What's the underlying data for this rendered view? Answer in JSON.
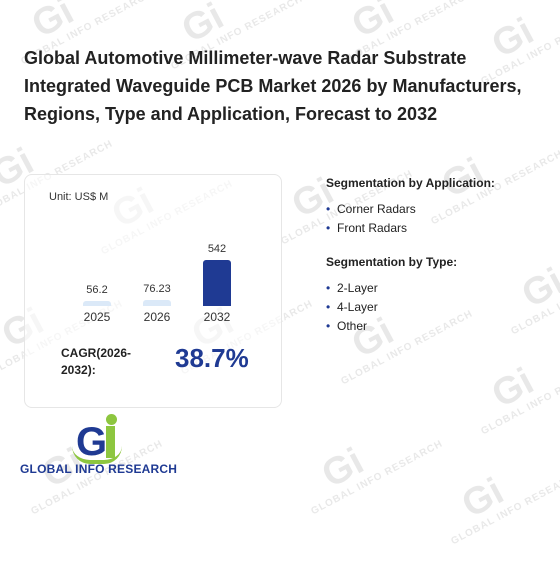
{
  "title": "Global Automotive Millimeter-wave Radar Substrate Integrated Waveguide PCB Market 2026 by Manufacturers, Regions, Type and Application, Forecast to 2032",
  "watermark_text": "GLOBAL INFO RESEARCH",
  "market_card": {
    "unit": "Unit: US$ M",
    "cagr_label": "CAGR(2026-2032):",
    "cagr_value": "38.7%"
  },
  "chart_data": {
    "type": "bar",
    "categories": [
      "2025",
      "2026",
      "2032"
    ],
    "values": [
      56.2,
      76.23,
      542
    ],
    "value_labels": [
      "56.2",
      "76.23",
      "542"
    ],
    "ylabel": "Unit: US$ M",
    "colors": [
      "#dbe9f8",
      "#dbe9f8",
      "#1f3a93"
    ]
  },
  "segmentation_application": {
    "title": "Segmentation by Application:",
    "items": [
      "Corner Radars",
      "Front Radars"
    ]
  },
  "segmentation_type": {
    "title": "Segmentation by Type:",
    "items": [
      "2-Layer",
      "4-Layer",
      "Other"
    ]
  },
  "logo": {
    "text": "GLOBAL INFO RESEARCH",
    "letters": "Gi"
  },
  "brand_colors": {
    "navy": "#1f3a93",
    "green": "#8dc63f",
    "light_bar": "#dbe9f8"
  }
}
